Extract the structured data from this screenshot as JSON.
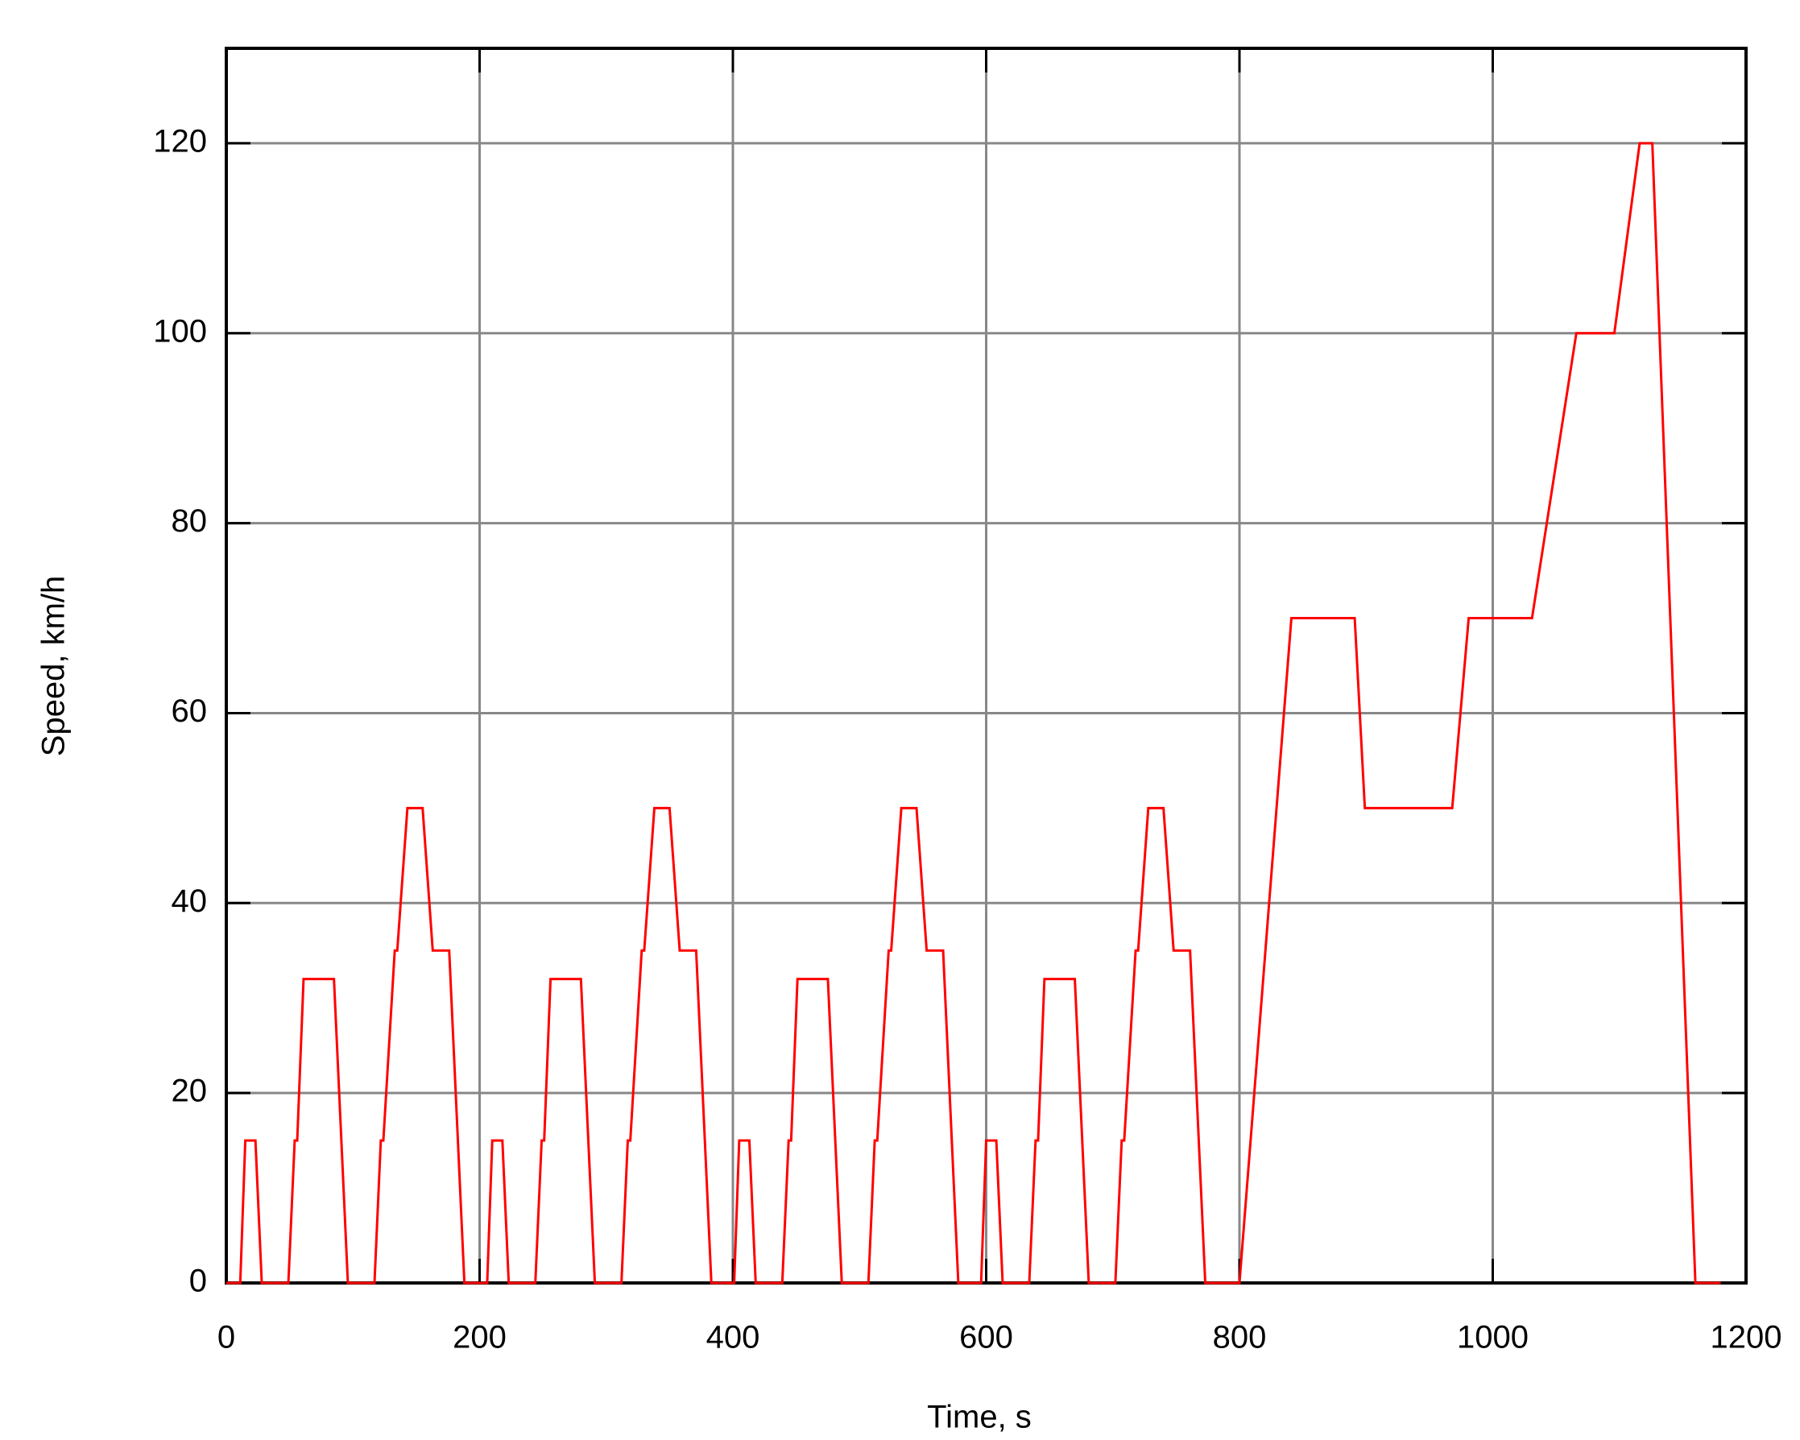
{
  "chart_data": {
    "type": "line",
    "x_label": "Time, s",
    "y_label": "Speed, km/h",
    "xlim": [
      0,
      1200
    ],
    "ylim": [
      0,
      130
    ],
    "xticks": [
      0,
      200,
      400,
      600,
      800,
      1000,
      1200
    ],
    "yticks": [
      0,
      20,
      40,
      60,
      80,
      100,
      120
    ],
    "grid": true,
    "series": [
      {
        "color": "#ff0000",
        "x": [
          0,
          11,
          15,
          23,
          28,
          49,
          54,
          56,
          61,
          85,
          96,
          117,
          122,
          124,
          133,
          135,
          143,
          155,
          163,
          176,
          188,
          195,
          206,
          210,
          218,
          223,
          244,
          249,
          251,
          256,
          280,
          291,
          312,
          317,
          319,
          328,
          330,
          338,
          350,
          358,
          371,
          383,
          390,
          401,
          405,
          413,
          418,
          439,
          444,
          446,
          451,
          475,
          486,
          507,
          512,
          514,
          523,
          525,
          533,
          545,
          553,
          566,
          578,
          585,
          596,
          600,
          608,
          613,
          634,
          639,
          641,
          646,
          670,
          681,
          702,
          707,
          709,
          718,
          720,
          728,
          740,
          748,
          761,
          773,
          780,
          800,
          841,
          891,
          899,
          968,
          981,
          1031,
          1066,
          1096,
          1116,
          1126,
          1160,
          1180
        ],
        "values": [
          0,
          0,
          15,
          15,
          0,
          0,
          15,
          15,
          32,
          32,
          0,
          0,
          15,
          15,
          35,
          35,
          50,
          50,
          35,
          35,
          0,
          0,
          0,
          15,
          15,
          0,
          0,
          15,
          15,
          32,
          32,
          0,
          0,
          15,
          15,
          35,
          35,
          50,
          50,
          35,
          35,
          0,
          0,
          0,
          15,
          15,
          0,
          0,
          15,
          15,
          32,
          32,
          0,
          0,
          15,
          15,
          35,
          35,
          50,
          50,
          35,
          35,
          0,
          0,
          0,
          15,
          15,
          0,
          0,
          15,
          15,
          32,
          32,
          0,
          0,
          15,
          15,
          35,
          35,
          50,
          50,
          35,
          35,
          0,
          0,
          0,
          70,
          70,
          50,
          50,
          70,
          70,
          100,
          100,
          120,
          120,
          0,
          0
        ]
      }
    ]
  }
}
